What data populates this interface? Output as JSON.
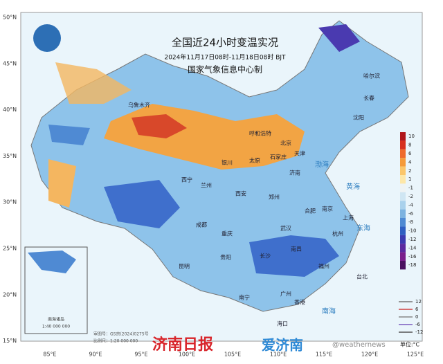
{
  "header": {
    "title": "全国近24小时变温实况",
    "subtitle": "2024年11月17日08时-11月18日08时 BJT",
    "producer": "国家气象信息中心制"
  },
  "latitudes": [
    "50°N",
    "45°N",
    "40°N",
    "35°N",
    "30°N",
    "25°N",
    "20°N",
    "15°N"
  ],
  "longitudes": [
    "85°E",
    "90°E",
    "95°E",
    "100°E",
    "105°E",
    "110°E",
    "115°E",
    "120°E",
    "125°E"
  ],
  "colorbar": {
    "ticks": [
      10,
      8,
      6,
      4,
      2,
      1,
      -1,
      -2,
      -4,
      -6,
      -8,
      -10,
      -12,
      -14,
      -16,
      -18
    ],
    "colors": [
      "#b0161b",
      "#d7301f",
      "#ee6a2c",
      "#f59a3a",
      "#fbc66a",
      "#fde7a8",
      "#eef3f4",
      "#cfe6f3",
      "#a9d1ec",
      "#7db3e0",
      "#4f8ad3",
      "#2f5fc2",
      "#3b3ab0",
      "#5b2aa0",
      "#7a1f8c",
      "#4a1060"
    ]
  },
  "lines_legend": {
    "values": [
      12,
      6,
      0,
      -6,
      -12
    ],
    "colors": [
      "#777777",
      "#d04040",
      "#888888",
      "#7a5bc0",
      "#555555"
    ]
  },
  "unit": "单位:°C",
  "cities": [
    "乌鲁木齐",
    "呼和浩特",
    "北京",
    "天津",
    "石家庄",
    "太原",
    "银川",
    "兰州",
    "西宁",
    "西安",
    "郑州",
    "济南",
    "南京",
    "合肥",
    "上海",
    "武汉",
    "成都",
    "重庆",
    "长沙",
    "南昌",
    "杭州",
    "福州",
    "贵阳",
    "昆明",
    "南宁",
    "广州",
    "香港",
    "台北",
    "海口",
    "沈阳",
    "长春",
    "哈尔滨"
  ],
  "seas": [
    "渤海",
    "黄海",
    "东海",
    "南海"
  ],
  "inset": {
    "title": "南海诸岛",
    "scale": "1:40 000 000"
  },
  "footer": {
    "approval": "审图号：GS京(2024)0275号",
    "scale": "比例尺：1:20 000 000"
  },
  "watermark": {
    "brand1": "济南日报",
    "brand2": "爱济南",
    "weibo": "@weathernews"
  }
}
